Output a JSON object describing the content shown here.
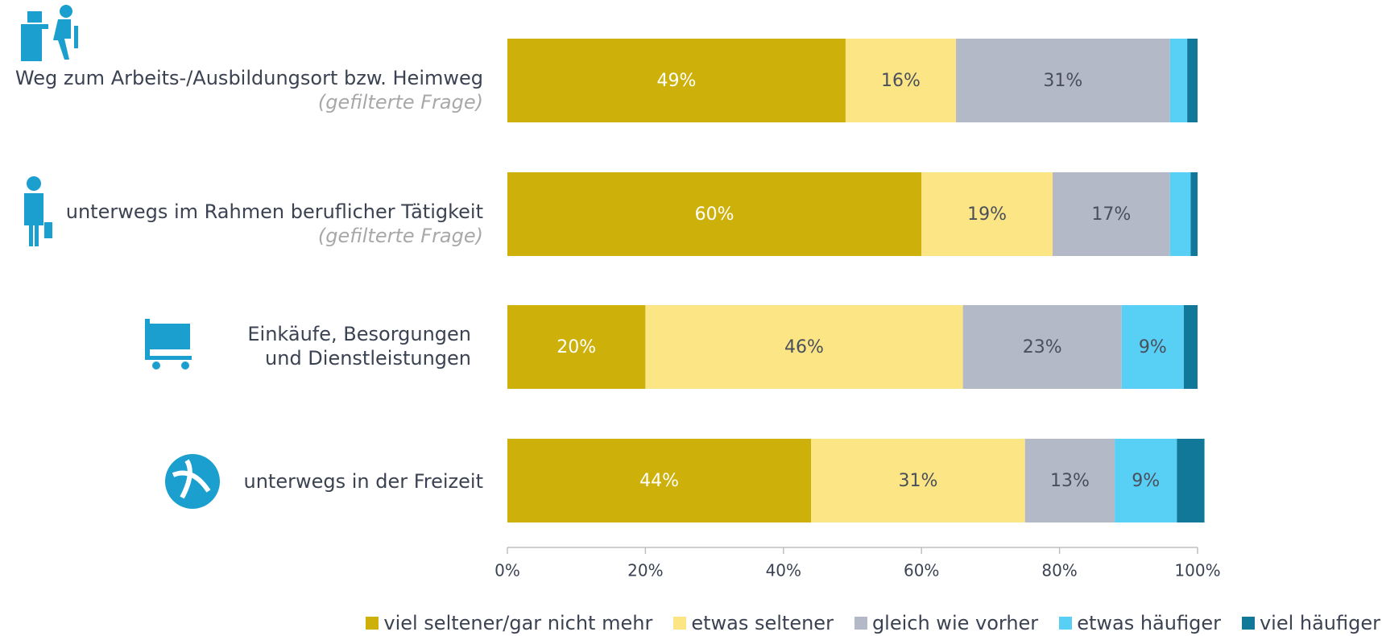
{
  "chart_data": {
    "type": "stacked_barh",
    "categories": [
      "Weg zum Arbeits-/Ausbildungsort bzw. Heimweg",
      "unterwegs im Rahmen beruflicher Tätigkeit",
      "Einkäufe, Besorgungen und Dienstleistungen",
      "unterwegs in der Freizeit"
    ],
    "category_notes": [
      "(gefilterte Frage)",
      "(gefilterte Frage)",
      null,
      null
    ],
    "series": [
      {
        "name": "viel seltener/gar nicht mehr",
        "color": "#cdb00a",
        "label_color": "#ffffff",
        "values": [
          49,
          60,
          20,
          44
        ],
        "value_labels": [
          "49%",
          "60%",
          "20%",
          "44%"
        ]
      },
      {
        "name": "etwas seltener",
        "color": "#fbe584",
        "label_color": "#4a4f5c",
        "values": [
          16,
          19,
          46,
          31
        ],
        "value_labels": [
          "16%",
          "19%",
          "46%",
          "31%"
        ]
      },
      {
        "name": "gleich wie vorher",
        "color": "#b3b9c7",
        "label_color": "#4a4f5c",
        "values": [
          31,
          17,
          23,
          13
        ],
        "value_labels": [
          "31%",
          "17%",
          "23%",
          "13%"
        ]
      },
      {
        "name": "etwas häufiger",
        "color": "#58cff4",
        "label_color": "#4a4f5c",
        "values": [
          2.5,
          3,
          9,
          9
        ],
        "value_labels": [
          null,
          null,
          "9%",
          "9%"
        ]
      },
      {
        "name": "viel häufiger",
        "color": "#12789a",
        "label_color": "#ffffff",
        "values": [
          1.5,
          1,
          2,
          4
        ],
        "value_labels": [
          null,
          null,
          null,
          null
        ]
      }
    ],
    "xlim": [
      0,
      100
    ],
    "xticks": [
      {
        "value": 0,
        "label": "0%"
      },
      {
        "value": 20,
        "label": "20%"
      },
      {
        "value": 40,
        "label": "40%"
      },
      {
        "value": 60,
        "label": "60%"
      },
      {
        "value": 80,
        "label": "80%"
      },
      {
        "value": 100,
        "label": "100%"
      }
    ]
  }
}
